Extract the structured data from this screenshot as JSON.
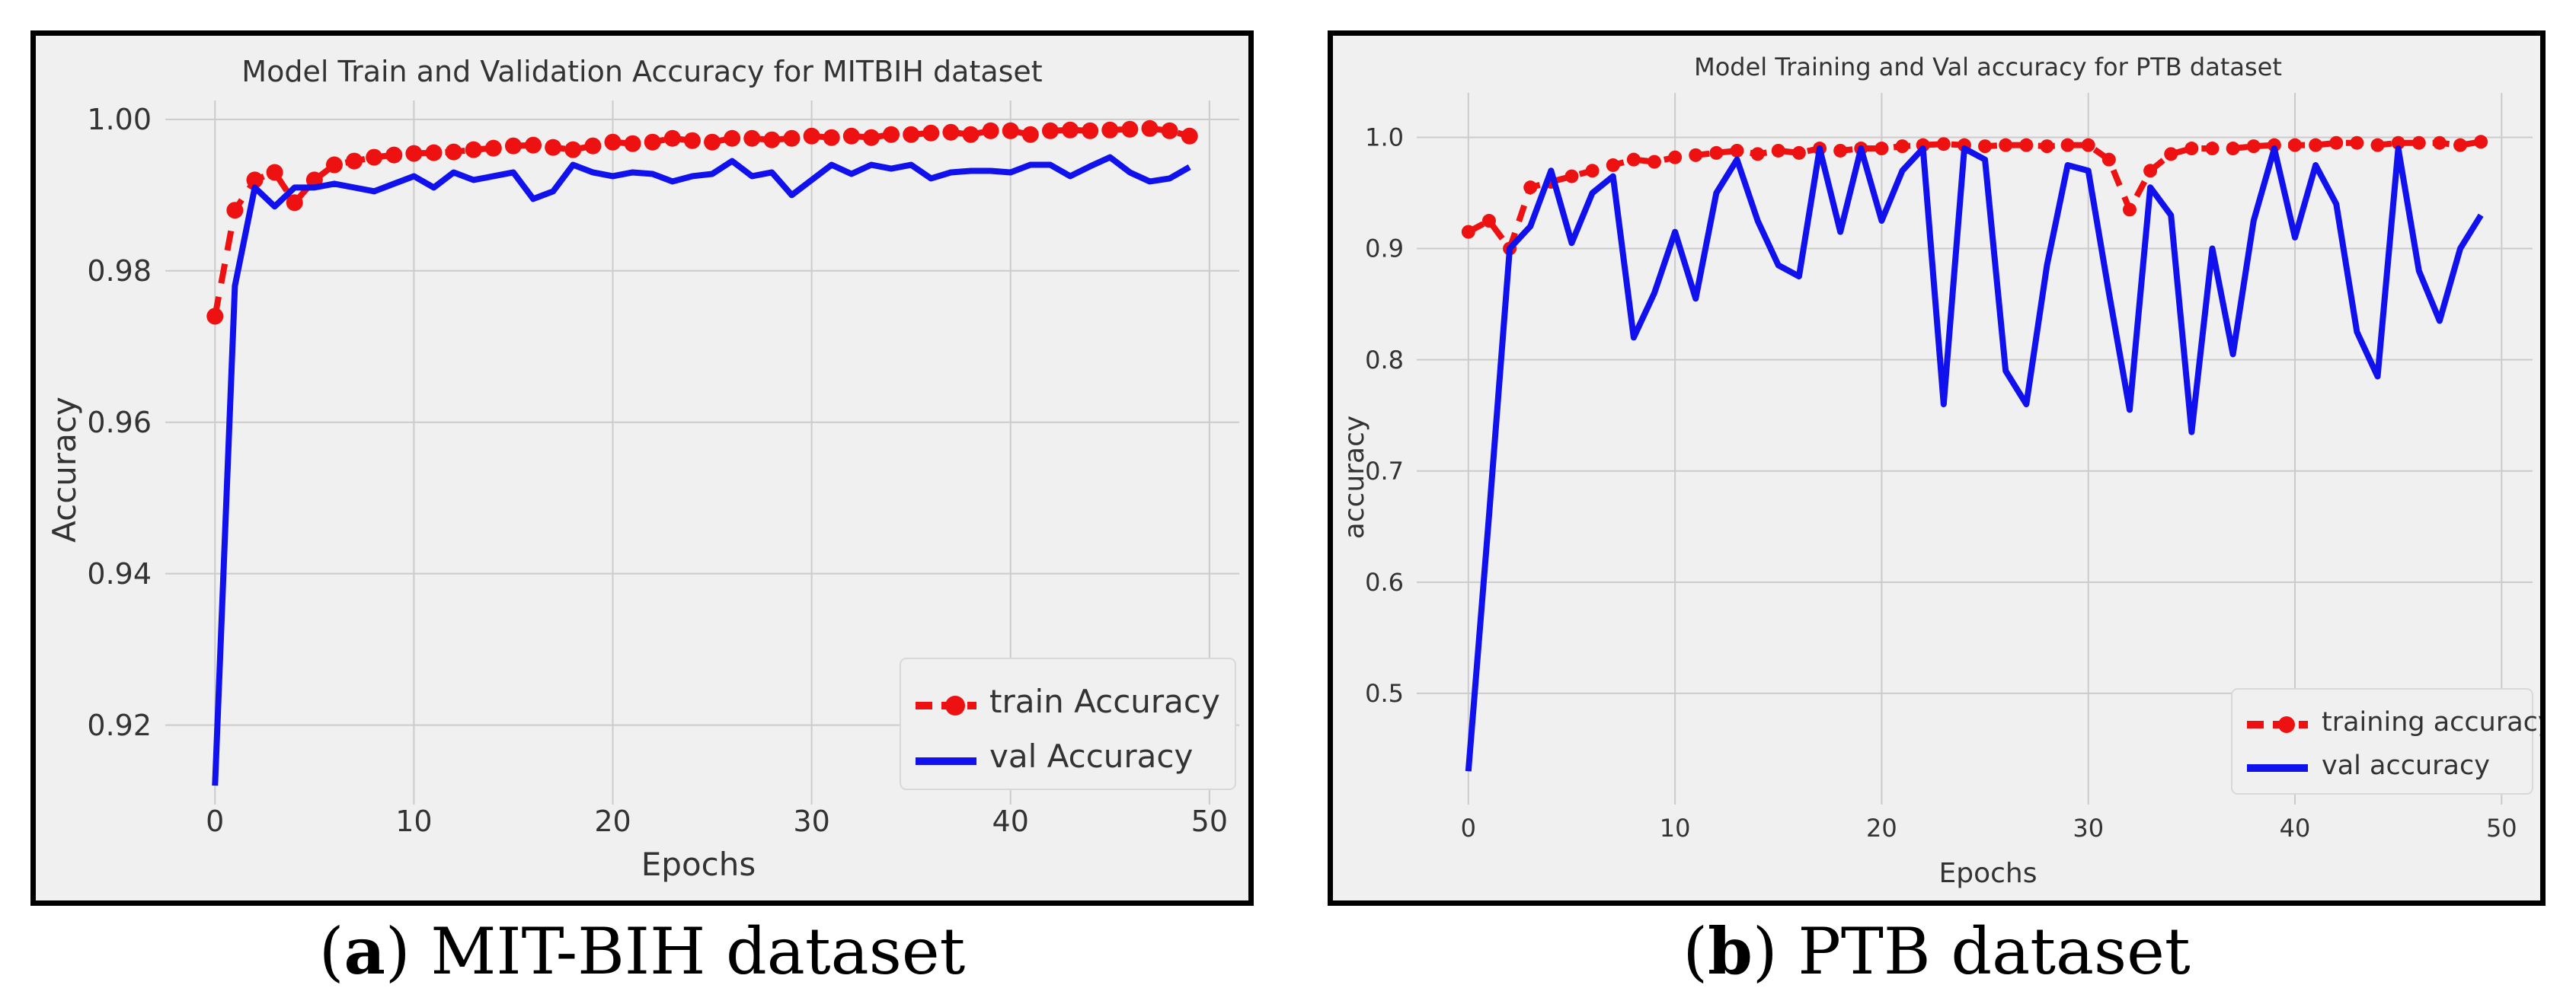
{
  "colors": {
    "train": "#ee1111",
    "val": "#1111ee",
    "plot_bg": "#f0f0f0",
    "grid": "#cbcbcb",
    "text": "#333333"
  },
  "captions": {
    "a": {
      "letter": "a",
      "text": "MIT-BIH dataset"
    },
    "b": {
      "letter": "b",
      "text": "PTB dataset"
    }
  },
  "chart_data": [
    {
      "id": "a",
      "type": "line",
      "title": "Model Train and Validation Accuracy for MITBIH dataset",
      "xlabel": "Epochs",
      "ylabel": "Accuracy",
      "xlim": [
        -2.5,
        51.5
      ],
      "ylim": [
        0.9095,
        1.0025
      ],
      "xticks": [
        0,
        10,
        20,
        30,
        40,
        50
      ],
      "xtick_labels": [
        "0",
        "10",
        "20",
        "30",
        "40",
        "50"
      ],
      "yticks": [
        0.92,
        0.94,
        0.96,
        0.98,
        1.0
      ],
      "ytick_labels": [
        "0.92",
        "0.94",
        "0.96",
        "0.98",
        "1.00"
      ],
      "legend_position": "lower-right",
      "series": [
        {
          "name": "train Accuracy",
          "style": "dashed-markers",
          "x": [
            0,
            1,
            2,
            3,
            4,
            5,
            6,
            7,
            8,
            9,
            10,
            11,
            12,
            13,
            14,
            15,
            16,
            17,
            18,
            19,
            20,
            21,
            22,
            23,
            24,
            25,
            26,
            27,
            28,
            29,
            30,
            31,
            32,
            33,
            34,
            35,
            36,
            37,
            38,
            39,
            40,
            41,
            42,
            43,
            44,
            45,
            46,
            47,
            48,
            49
          ],
          "values": [
            0.974,
            0.988,
            0.992,
            0.993,
            0.989,
            0.992,
            0.994,
            0.9945,
            0.995,
            0.9953,
            0.9955,
            0.9956,
            0.9957,
            0.996,
            0.9962,
            0.9965,
            0.9966,
            0.9963,
            0.996,
            0.9965,
            0.997,
            0.9968,
            0.997,
            0.9975,
            0.9972,
            0.997,
            0.9975,
            0.9975,
            0.9973,
            0.9975,
            0.9978,
            0.9976,
            0.9978,
            0.9976,
            0.998,
            0.998,
            0.9982,
            0.9983,
            0.998,
            0.9985,
            0.9985,
            0.998,
            0.9985,
            0.9986,
            0.9985,
            0.9986,
            0.9987,
            0.9988,
            0.9985,
            0.9978
          ]
        },
        {
          "name": "val Accuracy",
          "style": "solid",
          "x": [
            0,
            1,
            2,
            3,
            4,
            5,
            6,
            7,
            8,
            9,
            10,
            11,
            12,
            13,
            14,
            15,
            16,
            17,
            18,
            19,
            20,
            21,
            22,
            23,
            24,
            25,
            26,
            27,
            28,
            29,
            30,
            31,
            32,
            33,
            34,
            35,
            36,
            37,
            38,
            39,
            40,
            41,
            42,
            43,
            44,
            45,
            46,
            47,
            48,
            49
          ],
          "values": [
            0.912,
            0.978,
            0.991,
            0.9885,
            0.991,
            0.991,
            0.9915,
            0.991,
            0.9905,
            0.9915,
            0.9925,
            0.991,
            0.993,
            0.992,
            0.9925,
            0.993,
            0.9895,
            0.9905,
            0.994,
            0.993,
            0.9925,
            0.993,
            0.9928,
            0.9918,
            0.9925,
            0.9928,
            0.9945,
            0.9925,
            0.993,
            0.99,
            0.992,
            0.994,
            0.9928,
            0.994,
            0.9935,
            0.994,
            0.9922,
            0.993,
            0.9932,
            0.9932,
            0.993,
            0.994,
            0.994,
            0.9925,
            0.9938,
            0.995,
            0.993,
            0.9918,
            0.9922,
            0.9937
          ]
        }
      ]
    },
    {
      "id": "b",
      "type": "line",
      "title": "Model Training and Val accuracy for PTB dataset",
      "xlabel": "Epochs",
      "ylabel": "accuracy",
      "xlim": [
        -2.5,
        51.5
      ],
      "ylim": [
        0.4,
        1.04
      ],
      "xticks": [
        0,
        10,
        20,
        30,
        40,
        50
      ],
      "xtick_labels": [
        "0",
        "10",
        "20",
        "30",
        "40",
        "50"
      ],
      "yticks": [
        0.5,
        0.6,
        0.7,
        0.8,
        0.9,
        1.0
      ],
      "ytick_labels": [
        "0.5",
        "0.6",
        "0.7",
        "0.8",
        "0.9",
        "1.0"
      ],
      "legend_position": "lower-right",
      "series": [
        {
          "name": "training accuracy",
          "style": "dashed-markers",
          "x": [
            0,
            1,
            2,
            3,
            4,
            5,
            6,
            7,
            8,
            9,
            10,
            11,
            12,
            13,
            14,
            15,
            16,
            17,
            18,
            19,
            20,
            21,
            22,
            23,
            24,
            25,
            26,
            27,
            28,
            29,
            30,
            31,
            32,
            33,
            34,
            35,
            36,
            37,
            38,
            39,
            40,
            41,
            42,
            43,
            44,
            45,
            46,
            47,
            48,
            49
          ],
          "values": [
            0.915,
            0.925,
            0.9,
            0.955,
            0.96,
            0.965,
            0.97,
            0.975,
            0.98,
            0.978,
            0.982,
            0.984,
            0.986,
            0.988,
            0.985,
            0.988,
            0.986,
            0.99,
            0.988,
            0.99,
            0.99,
            0.992,
            0.993,
            0.994,
            0.993,
            0.992,
            0.993,
            0.993,
            0.992,
            0.993,
            0.993,
            0.98,
            0.935,
            0.97,
            0.985,
            0.99,
            0.99,
            0.99,
            0.992,
            0.993,
            0.993,
            0.993,
            0.995,
            0.995,
            0.993,
            0.995,
            0.995,
            0.995,
            0.993,
            0.996
          ]
        },
        {
          "name": "val accuracy",
          "style": "solid",
          "x": [
            0,
            1,
            2,
            3,
            4,
            5,
            6,
            7,
            8,
            9,
            10,
            11,
            12,
            13,
            14,
            15,
            16,
            17,
            18,
            19,
            20,
            21,
            22,
            23,
            24,
            25,
            26,
            27,
            28,
            29,
            30,
            31,
            32,
            33,
            34,
            35,
            36,
            37,
            38,
            39,
            40,
            41,
            42,
            43,
            44,
            45,
            46,
            47,
            48,
            49
          ],
          "values": [
            0.43,
            0.66,
            0.9,
            0.92,
            0.97,
            0.905,
            0.95,
            0.965,
            0.82,
            0.86,
            0.915,
            0.855,
            0.95,
            0.98,
            0.925,
            0.885,
            0.875,
            0.99,
            0.915,
            0.99,
            0.925,
            0.97,
            0.99,
            0.76,
            0.99,
            0.98,
            0.79,
            0.76,
            0.885,
            0.975,
            0.97,
            0.86,
            0.755,
            0.955,
            0.93,
            0.735,
            0.9,
            0.805,
            0.925,
            0.99,
            0.91,
            0.975,
            0.94,
            0.825,
            0.785,
            0.99,
            0.88,
            0.835,
            0.9,
            0.93
          ]
        }
      ]
    }
  ]
}
